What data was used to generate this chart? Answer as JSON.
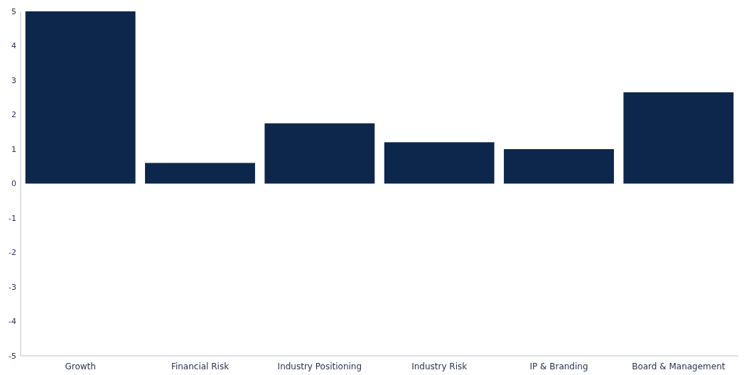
{
  "chart_data": {
    "type": "bar",
    "categories": [
      "Growth",
      "Financial Risk",
      "Industry Positioning",
      "Industry Risk",
      "IP & Branding",
      "Board & Management"
    ],
    "values": [
      5,
      0.6,
      1.75,
      1.2,
      1.0,
      2.65
    ],
    "color": "#0d264b",
    "ylim": [
      -5,
      5
    ],
    "yticks": [
      -5,
      -4,
      -3,
      -2,
      -1,
      0,
      1,
      2,
      3,
      4,
      5
    ],
    "grid": false
  }
}
